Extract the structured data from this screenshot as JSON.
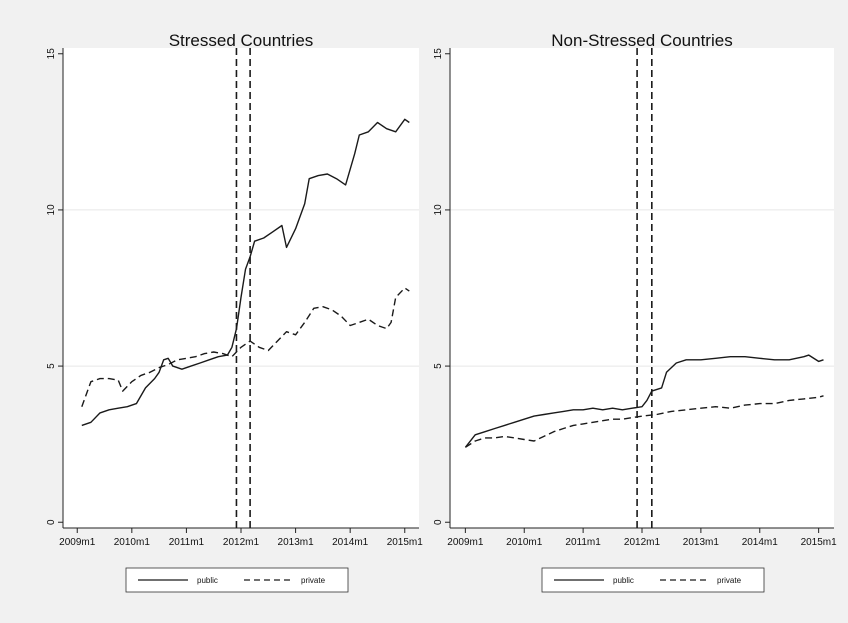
{
  "colors": {
    "outer_background": "#f1f1f1",
    "plot_background": "#ffffff",
    "grid": "#e8e8e8",
    "line": "#1a1a1a"
  },
  "chart_data": [
    {
      "type": "line",
      "title": "Stressed Countries",
      "xlabel": "",
      "ylabel": "",
      "x_ticks": [
        "2009m1",
        "2010m1",
        "2011m1",
        "2012m1",
        "2013m1",
        "2014m1",
        "2015m1"
      ],
      "y_ticks": [
        "0",
        "5",
        "10",
        "15"
      ],
      "xlim": [
        "2009m1",
        "2015m1"
      ],
      "ylim": [
        0,
        15
      ],
      "grid": true,
      "legend": {
        "position": "bottom",
        "entries": [
          "public",
          "private"
        ]
      },
      "vertical_reference_lines": [
        "2011m12",
        "2012m3"
      ],
      "series": [
        {
          "name": "public",
          "style": "solid",
          "points": [
            [
              "2009m2",
              3.1
            ],
            [
              "2009m4",
              3.2
            ],
            [
              "2009m6",
              3.5
            ],
            [
              "2009m8",
              3.6
            ],
            [
              "2009m10",
              3.65
            ],
            [
              "2009m12",
              3.7
            ],
            [
              "2010m2",
              3.8
            ],
            [
              "2010m4",
              4.3
            ],
            [
              "2010m6",
              4.6
            ],
            [
              "2010m7",
              4.8
            ],
            [
              "2010m8",
              5.2
            ],
            [
              "2010m9",
              5.25
            ],
            [
              "2010m10",
              5.0
            ],
            [
              "2010m12",
              4.9
            ],
            [
              "2011m2",
              5.0
            ],
            [
              "2011m4",
              5.1
            ],
            [
              "2011m6",
              5.2
            ],
            [
              "2011m8",
              5.3
            ],
            [
              "2011m10",
              5.35
            ],
            [
              "2011m11",
              5.6
            ],
            [
              "2011m12",
              6.2
            ],
            [
              "2012m1",
              7.2
            ],
            [
              "2012m2",
              8.1
            ],
            [
              "2012m3",
              8.5
            ],
            [
              "2012m4",
              9.0
            ],
            [
              "2012m6",
              9.1
            ],
            [
              "2012m8",
              9.3
            ],
            [
              "2012m10",
              9.5
            ],
            [
              "2012m11",
              8.8
            ],
            [
              "2013m1",
              9.4
            ],
            [
              "2013m3",
              10.2
            ],
            [
              "2013m4",
              11.0
            ],
            [
              "2013m6",
              11.1
            ],
            [
              "2013m8",
              11.15
            ],
            [
              "2013m10",
              11.0
            ],
            [
              "2013m12",
              10.8
            ],
            [
              "2014m2",
              11.8
            ],
            [
              "2014m3",
              12.4
            ],
            [
              "2014m5",
              12.5
            ],
            [
              "2014m7",
              12.8
            ],
            [
              "2014m9",
              12.6
            ],
            [
              "2014m11",
              12.5
            ],
            [
              "2015m1",
              12.9
            ],
            [
              "2015m2",
              12.8
            ]
          ]
        },
        {
          "name": "private",
          "style": "dashed",
          "points": [
            [
              "2009m2",
              3.7
            ],
            [
              "2009m4",
              4.5
            ],
            [
              "2009m6",
              4.6
            ],
            [
              "2009m8",
              4.6
            ],
            [
              "2009m10",
              4.55
            ],
            [
              "2009m11",
              4.2
            ],
            [
              "2010m1",
              4.5
            ],
            [
              "2010m3",
              4.7
            ],
            [
              "2010m5",
              4.8
            ],
            [
              "2010m7",
              4.95
            ],
            [
              "2010m9",
              5.05
            ],
            [
              "2010m11",
              5.2
            ],
            [
              "2011m1",
              5.25
            ],
            [
              "2011m3",
              5.3
            ],
            [
              "2011m5",
              5.4
            ],
            [
              "2011m7",
              5.45
            ],
            [
              "2011m9",
              5.4
            ],
            [
              "2011m11",
              5.3
            ],
            [
              "2012m1",
              5.6
            ],
            [
              "2012m3",
              5.8
            ],
            [
              "2012m5",
              5.6
            ],
            [
              "2012m7",
              5.5
            ],
            [
              "2012m9",
              5.8
            ],
            [
              "2012m11",
              6.1
            ],
            [
              "2013m1",
              6.0
            ],
            [
              "2013m3",
              6.4
            ],
            [
              "2013m5",
              6.85
            ],
            [
              "2013m7",
              6.9
            ],
            [
              "2013m9",
              6.8
            ],
            [
              "2013m11",
              6.6
            ],
            [
              "2014m1",
              6.3
            ],
            [
              "2014m3",
              6.4
            ],
            [
              "2014m5",
              6.5
            ],
            [
              "2014m7",
              6.3
            ],
            [
              "2014m9",
              6.2
            ],
            [
              "2014m10",
              6.4
            ],
            [
              "2014m11",
              7.2
            ],
            [
              "2015m1",
              7.5
            ],
            [
              "2015m2",
              7.4
            ]
          ]
        }
      ]
    },
    {
      "type": "line",
      "title": "Non-Stressed Countries",
      "xlabel": "",
      "ylabel": "",
      "x_ticks": [
        "2009m1",
        "2010m1",
        "2011m1",
        "2012m1",
        "2013m1",
        "2014m1",
        "2015m1"
      ],
      "y_ticks": [
        "0",
        "5",
        "10",
        "15"
      ],
      "xlim": [
        "2009m1",
        "2015m1"
      ],
      "ylim": [
        0,
        15
      ],
      "grid": true,
      "legend": {
        "position": "bottom",
        "entries": [
          "public",
          "private"
        ]
      },
      "vertical_reference_lines": [
        "2011m12",
        "2012m3"
      ],
      "series": [
        {
          "name": "public",
          "style": "solid",
          "points": [
            [
              "2009m1",
              2.4
            ],
            [
              "2009m3",
              2.8
            ],
            [
              "2009m5",
              2.9
            ],
            [
              "2009m7",
              3.0
            ],
            [
              "2009m9",
              3.1
            ],
            [
              "2009m11",
              3.2
            ],
            [
              "2010m1",
              3.3
            ],
            [
              "2010m3",
              3.4
            ],
            [
              "2010m5",
              3.45
            ],
            [
              "2010m7",
              3.5
            ],
            [
              "2010m9",
              3.55
            ],
            [
              "2010m11",
              3.6
            ],
            [
              "2011m1",
              3.6
            ],
            [
              "2011m3",
              3.65
            ],
            [
              "2011m5",
              3.6
            ],
            [
              "2011m7",
              3.65
            ],
            [
              "2011m9",
              3.6
            ],
            [
              "2011m11",
              3.65
            ],
            [
              "2012m1",
              3.7
            ],
            [
              "2012m2",
              3.9
            ],
            [
              "2012m3",
              4.2
            ],
            [
              "2012m5",
              4.3
            ],
            [
              "2012m6",
              4.8
            ],
            [
              "2012m8",
              5.1
            ],
            [
              "2012m10",
              5.2
            ],
            [
              "2013m1",
              5.2
            ],
            [
              "2013m4",
              5.25
            ],
            [
              "2013m7",
              5.3
            ],
            [
              "2013m10",
              5.3
            ],
            [
              "2014m1",
              5.25
            ],
            [
              "2014m4",
              5.2
            ],
            [
              "2014m7",
              5.2
            ],
            [
              "2014m10",
              5.3
            ],
            [
              "2014m11",
              5.35
            ],
            [
              "2015m1",
              5.15
            ],
            [
              "2015m2",
              5.2
            ]
          ]
        },
        {
          "name": "private",
          "style": "dashed",
          "points": [
            [
              "2009m1",
              2.4
            ],
            [
              "2009m3",
              2.6
            ],
            [
              "2009m5",
              2.7
            ],
            [
              "2009m7",
              2.7
            ],
            [
              "2009m9",
              2.75
            ],
            [
              "2009m11",
              2.7
            ],
            [
              "2010m1",
              2.65
            ],
            [
              "2010m3",
              2.6
            ],
            [
              "2010m5",
              2.75
            ],
            [
              "2010m7",
              2.9
            ],
            [
              "2010m9",
              3.0
            ],
            [
              "2010m11",
              3.1
            ],
            [
              "2011m1",
              3.15
            ],
            [
              "2011m3",
              3.2
            ],
            [
              "2011m5",
              3.25
            ],
            [
              "2011m7",
              3.3
            ],
            [
              "2011m9",
              3.3
            ],
            [
              "2011m11",
              3.35
            ],
            [
              "2012m1",
              3.4
            ],
            [
              "2012m4",
              3.45
            ],
            [
              "2012m7",
              3.55
            ],
            [
              "2012m10",
              3.6
            ],
            [
              "2013m1",
              3.65
            ],
            [
              "2013m4",
              3.7
            ],
            [
              "2013m7",
              3.65
            ],
            [
              "2013m10",
              3.75
            ],
            [
              "2014m1",
              3.8
            ],
            [
              "2014m4",
              3.8
            ],
            [
              "2014m7",
              3.9
            ],
            [
              "2014m10",
              3.95
            ],
            [
              "2015m1",
              4.0
            ],
            [
              "2015m2",
              4.05
            ]
          ]
        }
      ]
    }
  ]
}
